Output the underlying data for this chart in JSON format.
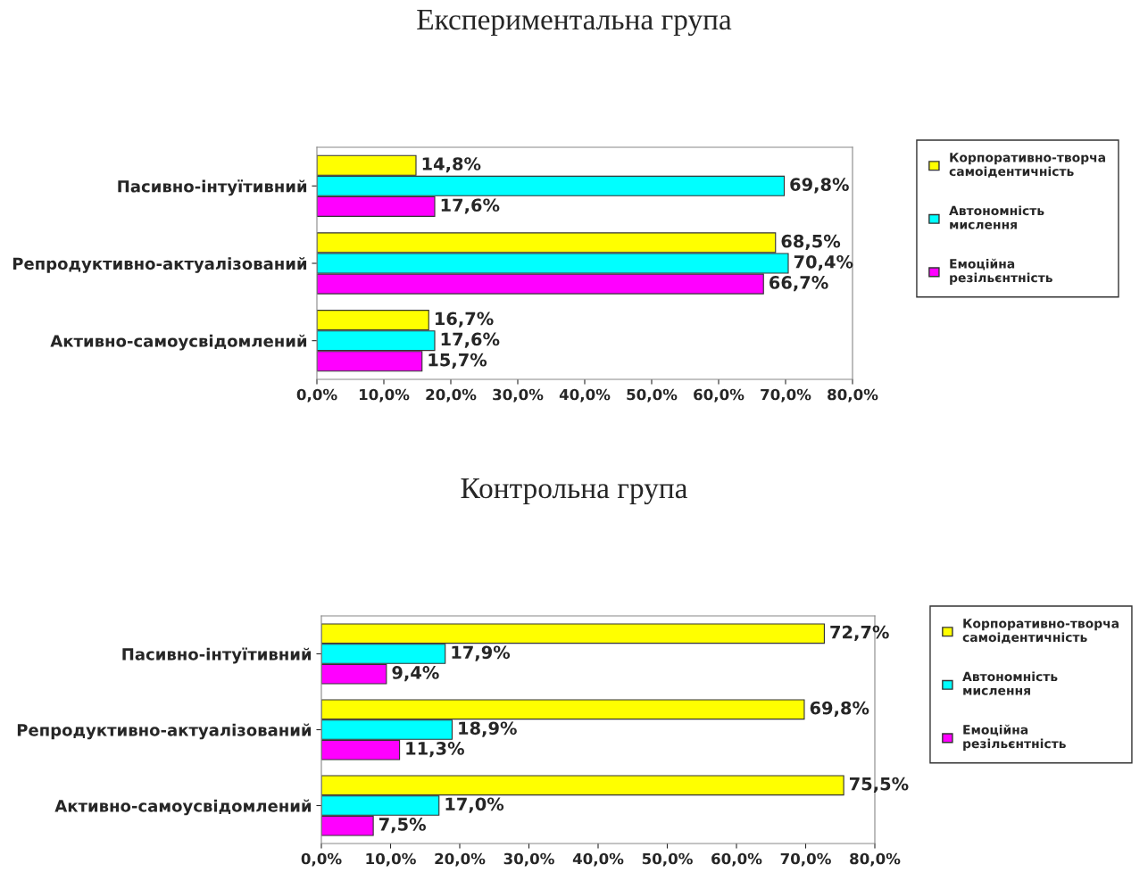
{
  "chart_data": [
    {
      "type": "bar",
      "orientation": "horizontal",
      "title": "Експериментальна група",
      "categories": [
        "Пасивно-інтуїтивний",
        "Репродуктивно-актуалізований",
        "Активно-самоусвідомлений"
      ],
      "series": [
        {
          "name": "Корпоративно-творча\nсамоідентичність",
          "color": "#ffff00",
          "values": [
            14.8,
            68.5,
            16.7
          ],
          "value_labels": [
            "14,8%",
            "68,5%",
            "16,7%"
          ]
        },
        {
          "name": "Автономність\nмислення",
          "color": "#00ffff",
          "values": [
            69.8,
            70.4,
            17.6
          ],
          "value_labels": [
            "69,8%",
            "70,4%",
            "17,6%"
          ]
        },
        {
          "name": "Емоційна\nрезільєнтність",
          "color": "#ff00ff",
          "values": [
            17.6,
            66.7,
            15.7
          ],
          "value_labels": [
            "17,6%",
            "66,7%",
            "15,7%"
          ]
        }
      ],
      "xlim": [
        0,
        80
      ],
      "xticks": [
        {
          "value": 0,
          "label": "0,0%"
        },
        {
          "value": 10,
          "label": "10,0%"
        },
        {
          "value": 20,
          "label": "20,0%"
        },
        {
          "value": 30,
          "label": "30,0%"
        },
        {
          "value": 40,
          "label": "40,0%"
        },
        {
          "value": 50,
          "label": "50,0%"
        },
        {
          "value": 60,
          "label": "60,0%"
        },
        {
          "value": 70,
          "label": "70,0%"
        },
        {
          "value": 80,
          "label": "80,0%"
        }
      ],
      "legend": "right",
      "grid": false
    },
    {
      "type": "bar",
      "orientation": "horizontal",
      "title": "Контрольна група",
      "categories": [
        "Пасивно-інтуїтивний",
        "Репродуктивно-актуалізований",
        "Активно-самоусвідомлений"
      ],
      "series": [
        {
          "name": "Корпоративно-творча\nсамоідентичність",
          "color": "#ffff00",
          "values": [
            72.7,
            69.8,
            75.5
          ],
          "value_labels": [
            "72,7%",
            "69,8%",
            "75,5%"
          ]
        },
        {
          "name": "Автономність\nмислення",
          "color": "#00ffff",
          "values": [
            17.9,
            18.9,
            17.0
          ],
          "value_labels": [
            "17,9%",
            "18,9%",
            "17,0%"
          ]
        },
        {
          "name": "Емоційна\nрезільєнтність",
          "color": "#ff00ff",
          "values": [
            9.4,
            11.3,
            7.5
          ],
          "value_labels": [
            "9,4%",
            "11,3%",
            "7,5%"
          ]
        }
      ],
      "xlim": [
        0,
        80
      ],
      "xticks": [
        {
          "value": 0,
          "label": "0,0%"
        },
        {
          "value": 10,
          "label": "10,0%"
        },
        {
          "value": 20,
          "label": "20,0%"
        },
        {
          "value": 30,
          "label": "30,0%"
        },
        {
          "value": 40,
          "label": "40,0%"
        },
        {
          "value": 50,
          "label": "50,0%"
        },
        {
          "value": 60,
          "label": "60,0%"
        },
        {
          "value": 70,
          "label": "70,0%"
        },
        {
          "value": 80,
          "label": "80,0%"
        }
      ],
      "legend": "right",
      "grid": false
    }
  ]
}
